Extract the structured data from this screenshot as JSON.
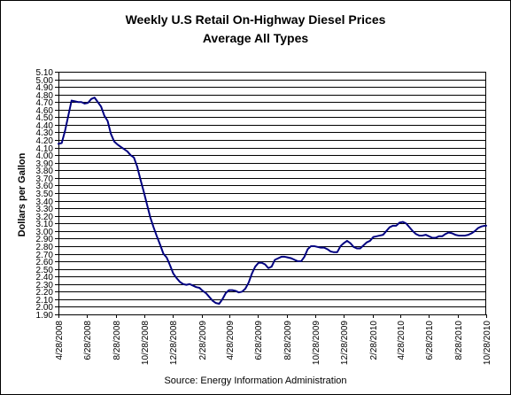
{
  "chart_data": {
    "type": "line",
    "title": "Weekly U.S Retail On-Highway Diesel Prices",
    "subtitle": "Average All Types",
    "xlabel": "",
    "ylabel": "Dollars per Gallon",
    "source": "Source:  Energy Information Administration",
    "ylim": [
      1.9,
      5.1
    ],
    "ytick_step": 0.1,
    "xlim": [
      "2008-04-28",
      "2010-10-28"
    ],
    "x_tick_labels": [
      "4/28/2008",
      "6/28/2008",
      "8/28/2008",
      "10/28/2008",
      "12/28/2008",
      "2/28/2009",
      "4/28/2009",
      "6/28/2009",
      "8/28/2009",
      "10/28/2009",
      "12/28/2009",
      "2/28/2010",
      "4/28/2010",
      "6/28/2010",
      "8/28/2010",
      "10/28/2010"
    ],
    "x_tick_dates": [
      "2008-04-28",
      "2008-06-28",
      "2008-08-28",
      "2008-10-28",
      "2008-12-28",
      "2009-02-28",
      "2009-04-28",
      "2009-06-28",
      "2009-08-28",
      "2009-10-28",
      "2009-12-28",
      "2010-02-28",
      "2010-04-28",
      "2010-06-28",
      "2010-08-28",
      "2010-10-28"
    ],
    "grid": "horizontal",
    "line_color": "#000080",
    "series": [
      {
        "x": [
          "2008-04-28",
          "2008-05-05",
          "2008-05-12",
          "2008-05-19",
          "2008-05-26",
          "2008-06-02",
          "2008-06-09",
          "2008-06-16",
          "2008-06-23",
          "2008-06-30",
          "2008-07-07",
          "2008-07-14",
          "2008-07-21",
          "2008-07-28",
          "2008-08-04",
          "2008-08-11",
          "2008-08-18",
          "2008-08-25",
          "2008-09-01",
          "2008-09-08",
          "2008-09-15",
          "2008-09-22",
          "2008-09-29",
          "2008-10-06",
          "2008-10-13",
          "2008-10-20",
          "2008-10-27",
          "2008-11-03",
          "2008-11-10",
          "2008-11-17",
          "2008-11-24",
          "2008-12-01",
          "2008-12-08",
          "2008-12-15",
          "2008-12-22",
          "2008-12-29",
          "2009-01-05",
          "2009-01-12",
          "2009-01-19",
          "2009-01-26",
          "2009-02-02",
          "2009-02-09",
          "2009-02-16",
          "2009-02-23",
          "2009-03-02",
          "2009-03-09",
          "2009-03-16",
          "2009-03-23",
          "2009-03-30",
          "2009-04-06",
          "2009-04-13",
          "2009-04-20",
          "2009-04-27",
          "2009-05-04",
          "2009-05-11",
          "2009-05-18",
          "2009-05-25",
          "2009-06-01",
          "2009-06-08",
          "2009-06-15",
          "2009-06-22",
          "2009-06-29",
          "2009-07-06",
          "2009-07-13",
          "2009-07-20",
          "2009-07-27",
          "2009-08-03",
          "2009-08-10",
          "2009-08-17",
          "2009-08-24",
          "2009-08-31",
          "2009-09-07",
          "2009-09-14",
          "2009-09-21",
          "2009-09-28",
          "2009-10-05",
          "2009-10-12",
          "2009-10-19",
          "2009-10-26",
          "2009-11-02",
          "2009-11-09",
          "2009-11-16",
          "2009-11-23",
          "2009-11-30",
          "2009-12-07",
          "2009-12-14",
          "2009-12-21",
          "2009-12-28",
          "2010-01-04",
          "2010-01-11",
          "2010-01-18",
          "2010-01-25",
          "2010-02-01",
          "2010-02-08",
          "2010-02-15",
          "2010-02-22",
          "2010-03-01",
          "2010-03-08",
          "2010-03-15",
          "2010-03-22",
          "2010-03-29",
          "2010-04-05",
          "2010-04-12",
          "2010-04-19",
          "2010-04-26",
          "2010-05-03",
          "2010-05-10",
          "2010-05-17",
          "2010-05-24",
          "2010-05-31",
          "2010-06-07",
          "2010-06-14",
          "2010-06-21",
          "2010-06-28",
          "2010-07-05",
          "2010-07-12",
          "2010-07-19",
          "2010-07-26",
          "2010-08-02",
          "2010-08-09",
          "2010-08-16",
          "2010-08-23",
          "2010-08-30",
          "2010-09-06",
          "2010-09-13",
          "2010-09-20",
          "2010-09-27",
          "2010-10-04",
          "2010-10-11",
          "2010-10-18",
          "2010-10-25",
          "2010-10-28"
        ],
        "values": [
          4.15,
          4.16,
          4.32,
          4.52,
          4.72,
          4.71,
          4.7,
          4.7,
          4.68,
          4.69,
          4.74,
          4.76,
          4.7,
          4.64,
          4.52,
          4.45,
          4.28,
          4.18,
          4.14,
          4.11,
          4.08,
          4.05,
          4.0,
          3.97,
          3.85,
          3.68,
          3.52,
          3.35,
          3.18,
          3.05,
          2.93,
          2.82,
          2.7,
          2.65,
          2.55,
          2.44,
          2.38,
          2.33,
          2.3,
          2.29,
          2.3,
          2.28,
          2.26,
          2.25,
          2.21,
          2.18,
          2.13,
          2.08,
          2.05,
          2.04,
          2.1,
          2.18,
          2.22,
          2.22,
          2.21,
          2.19,
          2.2,
          2.24,
          2.32,
          2.44,
          2.53,
          2.58,
          2.58,
          2.56,
          2.51,
          2.53,
          2.62,
          2.64,
          2.66,
          2.66,
          2.65,
          2.64,
          2.62,
          2.6,
          2.6,
          2.66,
          2.76,
          2.8,
          2.8,
          2.79,
          2.78,
          2.78,
          2.76,
          2.73,
          2.72,
          2.72,
          2.8,
          2.84,
          2.87,
          2.84,
          2.79,
          2.77,
          2.77,
          2.81,
          2.85,
          2.87,
          2.92,
          2.93,
          2.94,
          2.95,
          3.0,
          3.05,
          3.07,
          3.07,
          3.11,
          3.12,
          3.1,
          3.05,
          3.0,
          2.96,
          2.94,
          2.94,
          2.95,
          2.93,
          2.91,
          2.91,
          2.93,
          2.93,
          2.96,
          2.98,
          2.97,
          2.95,
          2.94,
          2.94,
          2.94,
          2.95,
          2.97,
          3.0,
          3.04,
          3.06,
          3.07,
          3.07
        ]
      }
    ]
  }
}
